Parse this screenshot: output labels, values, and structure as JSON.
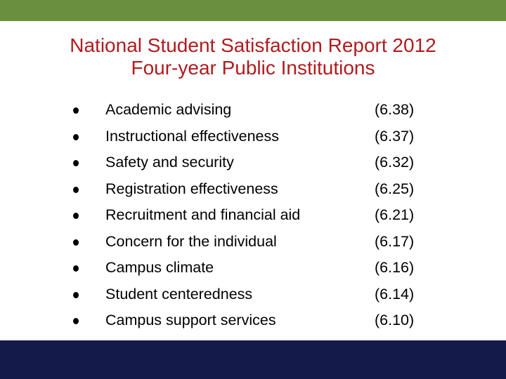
{
  "colors": {
    "top_bar": "#6a8f3f",
    "bottom_bar": "#141b4a",
    "title": "#b01c1f",
    "text": "#000000"
  },
  "title": {
    "line1": "National Student Satisfaction Report 2012",
    "line2": "Four-year Public Institutions"
  },
  "items": [
    {
      "label": "Academic advising",
      "score": "(6.38)"
    },
    {
      "label": "Instructional effectiveness",
      "score": "(6.37)"
    },
    {
      "label": "Safety and security",
      "score": "(6.32)"
    },
    {
      "label": "Registration effectiveness",
      "score": "(6.25)"
    },
    {
      "label": "Recruitment and financial aid",
      "score": "(6.21)"
    },
    {
      "label": "Concern for the individual",
      "score": "(6.17)"
    },
    {
      "label": "Campus climate",
      "score": "(6.16)"
    },
    {
      "label": "Student centeredness",
      "score": "(6.14)"
    },
    {
      "label": "Campus support services",
      "score": "(6.10)"
    }
  ]
}
